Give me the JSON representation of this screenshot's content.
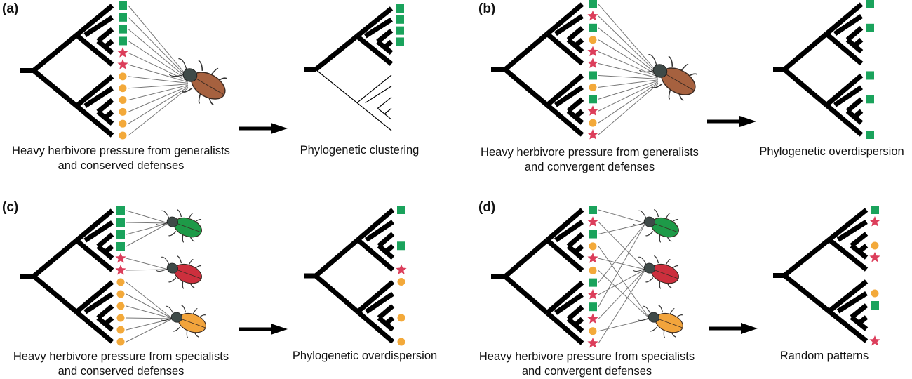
{
  "colors": {
    "square": "#1aa35c",
    "star": "#dc3e5b",
    "circle": "#f3a93a",
    "generalist_beetle": "#a6613f",
    "specialist_green": "#1e9a48",
    "specialist_red": "#cc2f3d",
    "specialist_orange": "#f2a43c"
  },
  "panels": [
    {
      "label": "(a)",
      "caption": [
        "Heavy herbivore pressure from generalists",
        "and conserved defenses"
      ],
      "result": "Phylogenetic clustering",
      "herbivore": "generalist",
      "tips": [
        "square",
        "square",
        "square",
        "square",
        "star",
        "star",
        "circle",
        "circle",
        "circle",
        "circle",
        "circle",
        "circle"
      ],
      "result_tips": [
        "square",
        "square",
        "square",
        "square",
        "none",
        "none",
        "none",
        "none",
        "none",
        "none",
        "none",
        "none"
      ]
    },
    {
      "label": "(b)",
      "caption": [
        "Heavy herbivore pressure from generalists",
        "and convergent defenses"
      ],
      "result": "Phylogenetic overdispersion",
      "herbivore": "generalist",
      "tips": [
        "square",
        "star",
        "square",
        "circle",
        "star",
        "star",
        "square",
        "circle",
        "square",
        "star",
        "circle",
        "star"
      ],
      "result_tips": [
        "square",
        "none",
        "square",
        "none",
        "none",
        "none",
        "square",
        "none",
        "square",
        "none",
        "none",
        "square"
      ]
    },
    {
      "label": "(c)",
      "caption": [
        "Heavy herbivore pressure from specialists",
        "and conserved defenses"
      ],
      "result": "Phylogenetic overdispersion",
      "herbivore": "specialists-conserved",
      "tips": [
        "square",
        "square",
        "square",
        "square",
        "star",
        "star",
        "circle",
        "circle",
        "circle",
        "circle",
        "circle",
        "circle"
      ],
      "result_tips": [
        "square",
        "none",
        "none",
        "square",
        "none",
        "star",
        "circle",
        "none",
        "none",
        "circle",
        "none",
        "circle"
      ]
    },
    {
      "label": "(d)",
      "caption": [
        "Heavy herbivore pressure from specialists",
        "and convergent defenses"
      ],
      "result": "Random patterns",
      "herbivore": "specialists-convergent",
      "tips": [
        "square",
        "star",
        "square",
        "circle",
        "star",
        "circle",
        "square",
        "star",
        "square",
        "star",
        "circle",
        "star"
      ],
      "result_tips": [
        "square",
        "star",
        "none",
        "circle",
        "star",
        "none",
        "none",
        "circle",
        "square",
        "none",
        "none",
        "star"
      ]
    }
  ]
}
